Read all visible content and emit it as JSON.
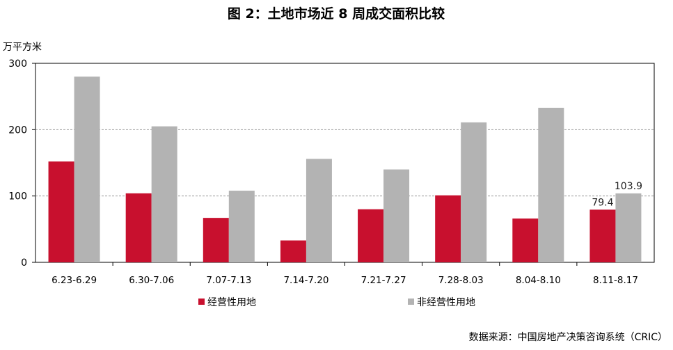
{
  "chart_data": {
    "type": "bar",
    "title": "图 2：土地市场近 8 周成交面积比较",
    "ylabel": "万平方米",
    "ylim": [
      0,
      300
    ],
    "yticks": [
      0,
      100,
      200,
      300
    ],
    "grid": true,
    "legend_position": "bottom",
    "categories": [
      "6.23-6.29",
      "6.30-7.06",
      "7.07-7.13",
      "7.14-7.20",
      "7.21-7.27",
      "7.28-8.03",
      "8.04-8.10",
      "8.11-8.17"
    ],
    "series": [
      {
        "name": "经营性用地",
        "color": "#c8102e",
        "values": [
          152,
          104,
          67,
          33,
          80,
          101,
          66,
          79.4
        ],
        "labels": [
          "",
          "",
          "",
          "",
          "",
          "",
          "",
          "79.4"
        ]
      },
      {
        "name": "非经营性用地",
        "color": "#b3b3b3",
        "values": [
          280,
          205,
          108,
          156,
          140,
          211,
          233,
          103.9
        ],
        "labels": [
          "",
          "",
          "",
          "",
          "",
          "",
          "",
          "103.9"
        ]
      }
    ],
    "source": "数据来源：中国房地产决策咨询系统（CRIC）"
  }
}
